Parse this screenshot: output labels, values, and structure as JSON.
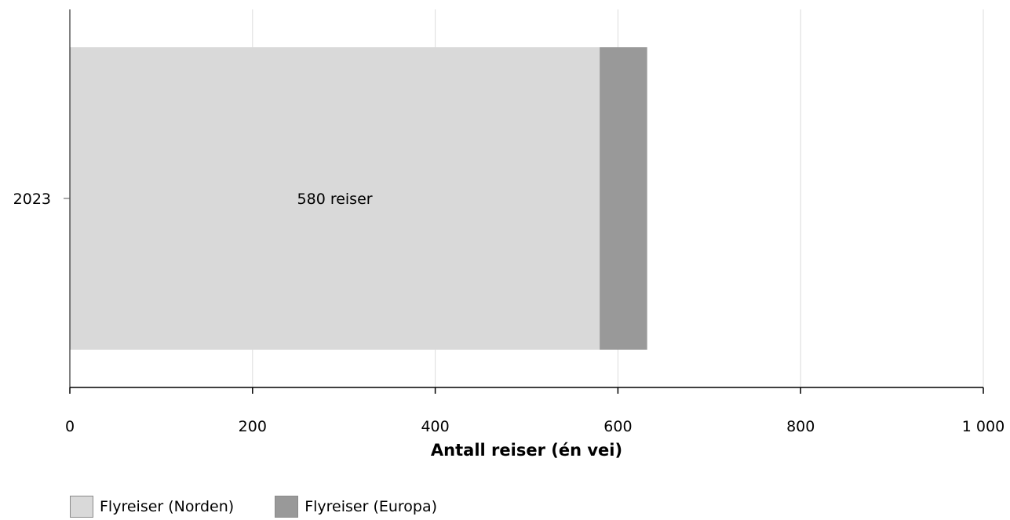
{
  "chart_data": {
    "type": "bar",
    "orientation": "horizontal",
    "stacked": true,
    "categories": [
      "2023"
    ],
    "series": [
      {
        "name": "Flyreiser (Norden)",
        "values": [
          580
        ],
        "color": "#d9d9d9",
        "data_label": "580 reiser"
      },
      {
        "name": "Flyreiser (Europa)",
        "values": [
          52
        ],
        "color": "#999999"
      }
    ],
    "xlabel": "Antall reiser (én vei)",
    "xlim": [
      0,
      1000
    ],
    "x_ticks": [
      0,
      200,
      400,
      600,
      800,
      1000
    ],
    "x_tick_labels": [
      "0",
      "200",
      "400",
      "600",
      "800",
      "1 000"
    ],
    "grid": true,
    "legend_position": "bottom-left"
  }
}
